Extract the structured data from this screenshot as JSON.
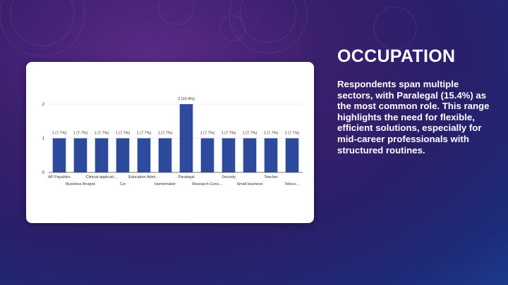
{
  "slide": {
    "title": "OCCUPATION",
    "body": "Respondents span multiple sectors, with Paralegal (15.4%) as the most common role. This range highlights the need for flexible, efficient solutions, especially for mid-career professionals with structured routines."
  },
  "colors": {
    "bar": "#2d4a9c",
    "grid": "#d9d9d9",
    "text": "#333333"
  },
  "chart_data": {
    "type": "bar",
    "categories": [
      "AP Payables",
      "Business Analyst",
      "Clinical applicati…",
      "Csr",
      "Education Admi…",
      "Homemaker",
      "Paralegal",
      "Research Cons…",
      "Security",
      "Small business",
      "Teacher",
      "Teleco…"
    ],
    "values": [
      1,
      1,
      1,
      1,
      1,
      1,
      2,
      1,
      1,
      1,
      1,
      1
    ],
    "data_labels": [
      "1 (7.7%)",
      "1 (7.7%)",
      "1 (7.7%)",
      "1 (7.7%)",
      "1 (7.7%)",
      "1 (7.7%)",
      "2 (15.4%)",
      "1 (7.7%)",
      "1 (7.7%)",
      "1 (7.7%)",
      "1 (7.7%)",
      "1 (7.7%)"
    ],
    "yticks": [
      "0",
      "1",
      "2"
    ],
    "ylim": [
      0,
      2
    ],
    "grid": true
  }
}
